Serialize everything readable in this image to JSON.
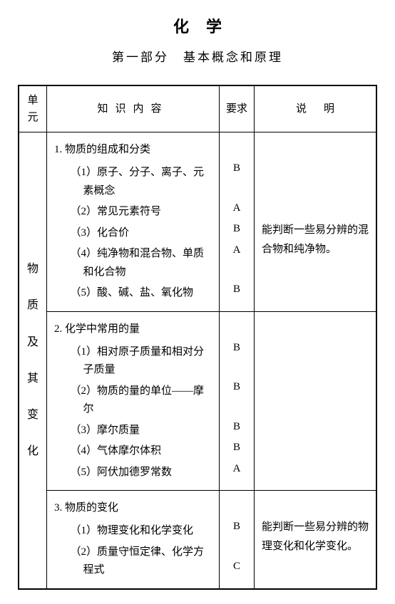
{
  "title": "化学",
  "subtitle": "第一部分　基本概念和原理",
  "headers": {
    "unit": "单元",
    "content": "知识内容",
    "requirement": "要求",
    "note": "说明"
  },
  "unit_label": "物质及其变化",
  "sections": [
    {
      "title": "1. 物质的组成和分类",
      "items": [
        {
          "num": "（1）",
          "text": "原子、分子、离子、元素概念",
          "req": "B"
        },
        {
          "num": "（2）",
          "text": "常见元素符号",
          "req": "A"
        },
        {
          "num": "（3）",
          "text": "化合价",
          "req": "B"
        },
        {
          "num": "（4）",
          "text": "纯净物和混合物、单质和化合物",
          "req": "A"
        },
        {
          "num": "（5）",
          "text": "酸、碱、盐、氧化物",
          "req": "B"
        }
      ],
      "note": "能判断一些易分辨的混合物和纯净物。"
    },
    {
      "title": "2. 化学中常用的量",
      "items": [
        {
          "num": "（1）",
          "text": "相对原子质量和相对分子质量",
          "req": "B"
        },
        {
          "num": "（2）",
          "text": "物质的量的单位——摩尔",
          "req": "B"
        },
        {
          "num": "（3）",
          "text": "摩尔质量",
          "req": "B"
        },
        {
          "num": "（4）",
          "text": "气体摩尔体积",
          "req": "B"
        },
        {
          "num": "（5）",
          "text": "阿伏加德罗常数",
          "req": "A"
        }
      ],
      "note": ""
    },
    {
      "title": "3. 物质的变化",
      "items": [
        {
          "num": "（1）",
          "text": "物理变化和化学变化",
          "req": "B"
        },
        {
          "num": "（2）",
          "text": "质量守恒定律、化学方程式",
          "req": "C"
        }
      ],
      "note": "能判断一些易分辨的物理变化和化学变化。"
    }
  ]
}
